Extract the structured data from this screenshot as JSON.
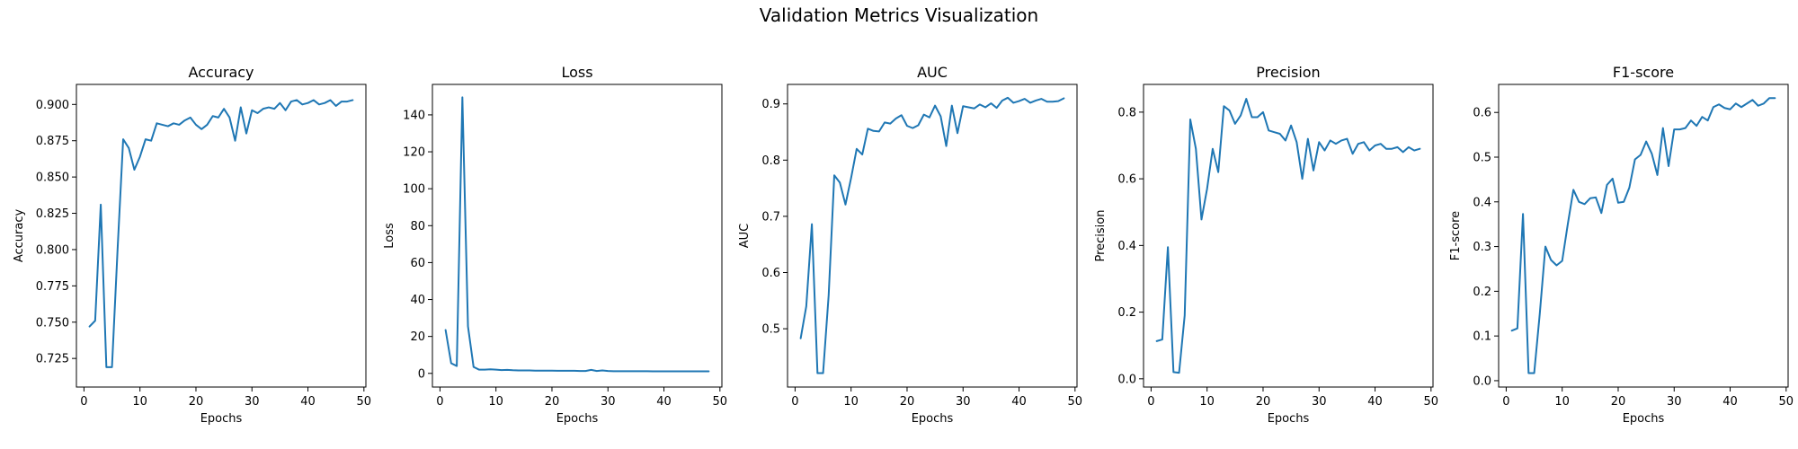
{
  "figure": {
    "suptitle": "Validation Metrics Visualization"
  },
  "style": {
    "line_color": "#1f77b4",
    "axis_color": "#000000",
    "background": "#ffffff"
  },
  "chart_data": [
    {
      "type": "line",
      "title": "Accuracy",
      "xlabel": "Epochs",
      "ylabel": "Accuracy",
      "xlim": [
        -1.35,
        50.35
      ],
      "ylim": [
        0.7053,
        0.9138
      ],
      "xticks": [
        0,
        10,
        20,
        30,
        40,
        50
      ],
      "yticks": [
        0.725,
        0.75,
        0.775,
        0.8,
        0.825,
        0.85,
        0.875,
        0.9
      ],
      "ytick_labels": [
        "0.725",
        "0.750",
        "0.775",
        "0.800",
        "0.825",
        "0.850",
        "0.875",
        "0.900"
      ],
      "grid": false,
      "x": [
        1,
        2,
        3,
        4,
        5,
        6,
        7,
        8,
        9,
        10,
        11,
        12,
        13,
        14,
        15,
        16,
        17,
        18,
        19,
        20,
        21,
        22,
        23,
        24,
        25,
        26,
        27,
        28,
        29,
        30,
        31,
        32,
        33,
        34,
        35,
        36,
        37,
        38,
        39,
        40,
        41,
        42,
        43,
        44,
        45,
        46,
        47,
        48
      ],
      "y": [
        0.747,
        0.751,
        0.831,
        0.719,
        0.719,
        0.8,
        0.876,
        0.87,
        0.855,
        0.864,
        0.876,
        0.875,
        0.887,
        0.886,
        0.885,
        0.887,
        0.886,
        0.889,
        0.891,
        0.886,
        0.883,
        0.886,
        0.892,
        0.891,
        0.897,
        0.891,
        0.875,
        0.898,
        0.88,
        0.896,
        0.894,
        0.897,
        0.898,
        0.897,
        0.901,
        0.896,
        0.902,
        0.903,
        0.9,
        0.901,
        0.903,
        0.9,
        0.901,
        0.903,
        0.899,
        0.902,
        0.902,
        0.903
      ]
    },
    {
      "type": "line",
      "title": "Loss",
      "xlabel": "Epochs",
      "ylabel": "Loss",
      "xlim": [
        -1.35,
        50.35
      ],
      "ylim": [
        -7.4,
        156.5
      ],
      "xticks": [
        0,
        10,
        20,
        30,
        40,
        50
      ],
      "yticks": [
        0,
        20,
        40,
        60,
        80,
        100,
        120,
        140
      ],
      "ytick_labels": [
        "0",
        "20",
        "40",
        "60",
        "80",
        "100",
        "120",
        "140"
      ],
      "grid": false,
      "x": [
        1,
        2,
        3,
        4,
        5,
        6,
        7,
        8,
        9,
        10,
        11,
        12,
        13,
        14,
        15,
        16,
        17,
        18,
        19,
        20,
        21,
        22,
        23,
        24,
        25,
        26,
        27,
        28,
        29,
        30,
        31,
        32,
        33,
        34,
        35,
        36,
        37,
        38,
        39,
        40,
        41,
        42,
        43,
        44,
        45,
        46,
        47,
        48
      ],
      "y": [
        23.5,
        5.5,
        4.0,
        149.5,
        25.5,
        3.5,
        2.0,
        2.0,
        2.2,
        2.0,
        1.8,
        1.9,
        1.7,
        1.6,
        1.6,
        1.6,
        1.5,
        1.5,
        1.5,
        1.5,
        1.4,
        1.4,
        1.4,
        1.4,
        1.3,
        1.3,
        1.9,
        1.3,
        1.6,
        1.3,
        1.2,
        1.2,
        1.2,
        1.2,
        1.2,
        1.2,
        1.2,
        1.1,
        1.1,
        1.1,
        1.1,
        1.1,
        1.1,
        1.1,
        1.1,
        1.1,
        1.1,
        1.1
      ]
    },
    {
      "type": "line",
      "title": "AUC",
      "xlabel": "Epochs",
      "ylabel": "AUC",
      "xlim": [
        -1.35,
        50.35
      ],
      "ylim": [
        0.3963,
        0.9347
      ],
      "xticks": [
        0,
        10,
        20,
        30,
        40,
        50
      ],
      "yticks": [
        0.5,
        0.6,
        0.7,
        0.8,
        0.9
      ],
      "ytick_labels": [
        "0.5",
        "0.6",
        "0.7",
        "0.8",
        "0.9"
      ],
      "grid": false,
      "x": [
        1,
        2,
        3,
        4,
        5,
        6,
        7,
        8,
        9,
        10,
        11,
        12,
        13,
        14,
        15,
        16,
        17,
        18,
        19,
        20,
        21,
        22,
        23,
        24,
        25,
        26,
        27,
        28,
        29,
        30,
        31,
        32,
        33,
        34,
        35,
        36,
        37,
        38,
        39,
        40,
        41,
        42,
        43,
        44,
        45,
        46,
        47,
        48
      ],
      "y": [
        0.483,
        0.54,
        0.686,
        0.421,
        0.421,
        0.56,
        0.773,
        0.76,
        0.721,
        0.768,
        0.82,
        0.81,
        0.856,
        0.852,
        0.851,
        0.867,
        0.865,
        0.874,
        0.88,
        0.861,
        0.857,
        0.862,
        0.881,
        0.876,
        0.897,
        0.878,
        0.825,
        0.897,
        0.848,
        0.896,
        0.894,
        0.892,
        0.899,
        0.894,
        0.901,
        0.893,
        0.906,
        0.911,
        0.902,
        0.905,
        0.909,
        0.902,
        0.906,
        0.909,
        0.904,
        0.904,
        0.905,
        0.91
      ]
    },
    {
      "type": "line",
      "title": "Precision",
      "xlabel": "Epochs",
      "ylabel": "Precision",
      "xlim": [
        -1.35,
        50.35
      ],
      "ylim": [
        -0.0247,
        0.8832
      ],
      "xticks": [
        0,
        10,
        20,
        30,
        40,
        50
      ],
      "yticks": [
        0.0,
        0.2,
        0.4,
        0.6,
        0.8
      ],
      "ytick_labels": [
        "0.0",
        "0.2",
        "0.4",
        "0.6",
        "0.8"
      ],
      "grid": false,
      "x": [
        1,
        2,
        3,
        4,
        5,
        6,
        7,
        8,
        9,
        10,
        11,
        12,
        13,
        14,
        15,
        16,
        17,
        18,
        19,
        20,
        21,
        22,
        23,
        24,
        25,
        26,
        27,
        28,
        29,
        30,
        31,
        32,
        33,
        34,
        35,
        36,
        37,
        38,
        39,
        40,
        41,
        42,
        43,
        44,
        45,
        46,
        47,
        48
      ],
      "y": [
        0.113,
        0.118,
        0.395,
        0.02,
        0.018,
        0.19,
        0.778,
        0.69,
        0.478,
        0.57,
        0.69,
        0.62,
        0.818,
        0.805,
        0.765,
        0.79,
        0.84,
        0.785,
        0.785,
        0.8,
        0.745,
        0.74,
        0.735,
        0.715,
        0.76,
        0.71,
        0.6,
        0.72,
        0.625,
        0.71,
        0.685,
        0.715,
        0.705,
        0.715,
        0.72,
        0.675,
        0.705,
        0.71,
        0.685,
        0.7,
        0.705,
        0.69,
        0.69,
        0.695,
        0.68,
        0.695,
        0.685,
        0.69
      ]
    },
    {
      "type": "line",
      "title": "F1-score",
      "xlabel": "Epochs",
      "ylabel": "F1-score",
      "xlim": [
        -1.35,
        50.35
      ],
      "ylim": [
        -0.0142,
        0.6627
      ],
      "xticks": [
        0,
        10,
        20,
        30,
        40,
        50
      ],
      "yticks": [
        0.0,
        0.1,
        0.2,
        0.3,
        0.4,
        0.5,
        0.6
      ],
      "ytick_labels": [
        "0.0",
        "0.1",
        "0.2",
        "0.3",
        "0.4",
        "0.5",
        "0.6"
      ],
      "grid": false,
      "x": [
        1,
        2,
        3,
        4,
        5,
        6,
        7,
        8,
        9,
        10,
        11,
        12,
        13,
        14,
        15,
        16,
        17,
        18,
        19,
        20,
        21,
        22,
        23,
        24,
        25,
        26,
        27,
        28,
        29,
        30,
        31,
        32,
        33,
        34,
        35,
        36,
        37,
        38,
        39,
        40,
        41,
        42,
        43,
        44,
        45,
        46,
        47,
        48
      ],
      "y": [
        0.112,
        0.117,
        0.373,
        0.017,
        0.017,
        0.15,
        0.3,
        0.27,
        0.258,
        0.268,
        0.35,
        0.427,
        0.4,
        0.395,
        0.408,
        0.41,
        0.375,
        0.438,
        0.452,
        0.398,
        0.4,
        0.432,
        0.495,
        0.505,
        0.535,
        0.508,
        0.46,
        0.565,
        0.48,
        0.562,
        0.562,
        0.565,
        0.582,
        0.57,
        0.59,
        0.582,
        0.612,
        0.618,
        0.61,
        0.607,
        0.62,
        0.612,
        0.62,
        0.628,
        0.615,
        0.62,
        0.632,
        0.632
      ]
    }
  ]
}
